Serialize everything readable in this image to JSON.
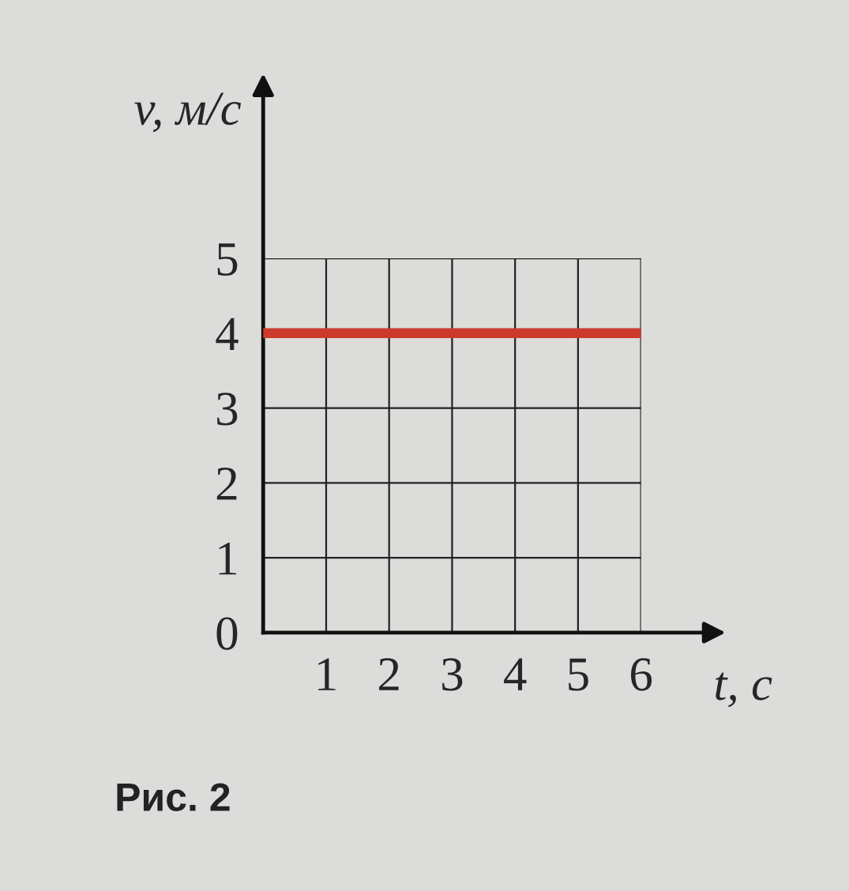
{
  "chart_data": {
    "type": "line",
    "x": [
      0,
      6
    ],
    "series": [
      {
        "color": "#cc3a2c",
        "values": [
          4,
          4
        ]
      }
    ],
    "xlim": [
      0,
      6
    ],
    "ylim": [
      0,
      5
    ],
    "xticks": [
      {
        "value": 0,
        "label": null
      },
      1,
      2,
      3,
      4,
      5,
      6
    ],
    "yticks": [
      0,
      1,
      2,
      3,
      4,
      5
    ],
    "xlabel": "t, с",
    "ylabel": "v, м/с",
    "grid": true,
    "legend": false,
    "marker": "none",
    "line_style": "solid",
    "annotations": [
      "Рис. 2"
    ]
  }
}
